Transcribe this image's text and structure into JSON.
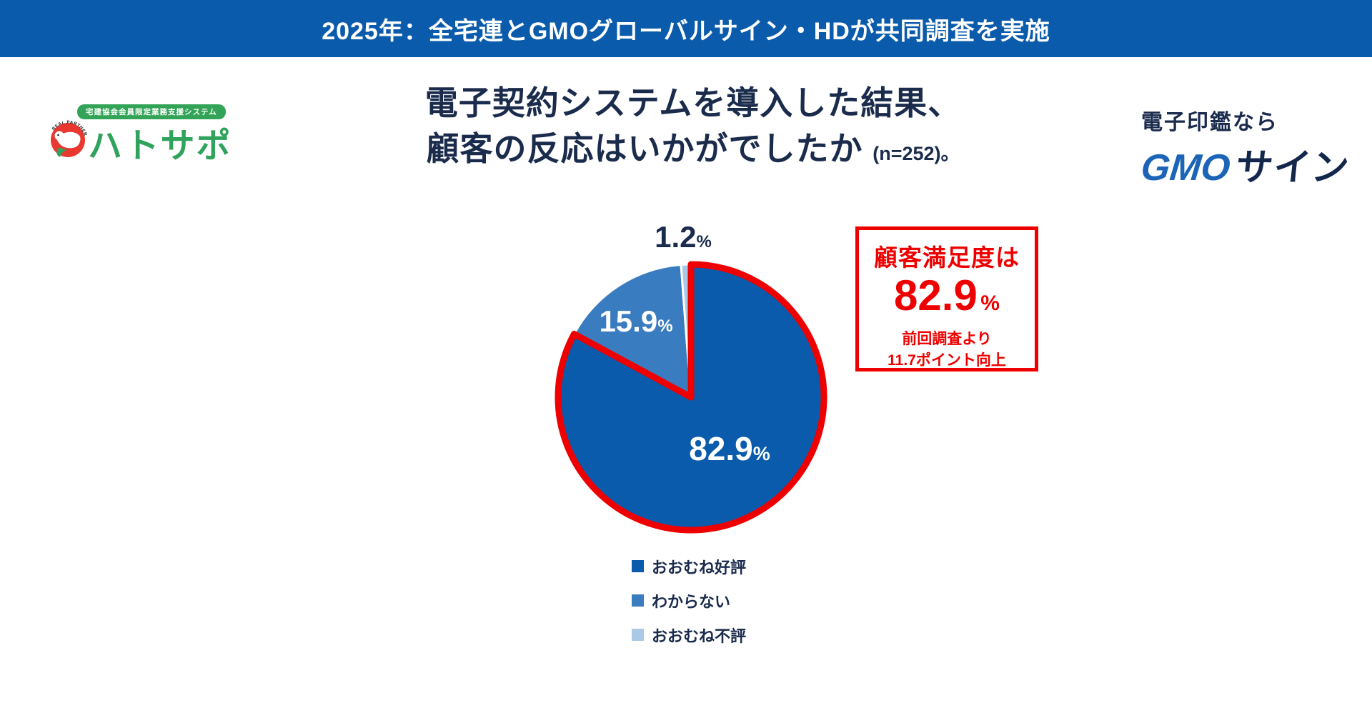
{
  "banner": {
    "text": "2025年：全宅連とGMOグローバルサイン・HDが共同調査を実施",
    "bg_color": "#0a5bab"
  },
  "hatosapo_logo": {
    "tagline": "宅建協会会員限定業務支援システム",
    "emblem_arc_text": "REAL PARTNER",
    "name": "ハトサポ",
    "green": "#2fa35c",
    "emblem_red": "#e8382f"
  },
  "gmosign_logo": {
    "lead": "電子印鑑なら",
    "brand_blue_part": "GMO",
    "brand_navy_part": "サイン",
    "blue": "#1c64b8",
    "navy": "#13264b"
  },
  "title": {
    "line1": "電子契約システムを導入した結果、",
    "line2": "顧客の反応はいかがでしたか",
    "sample_note": "(n=252)。"
  },
  "highlight_box": {
    "heading": "顧客満足度は",
    "value": "82.9",
    "unit": "%",
    "note1": "前回調査より",
    "note2": "11.7ポイント向上",
    "color": "#ee0000"
  },
  "chart_data": {
    "type": "pie",
    "title": "電子契約システムを導入した結果、顧客の反応はいかがでしたか（n=252）",
    "categories": [
      "おおむね好評",
      "わからない",
      "おおむね不評"
    ],
    "values": [
      82.9,
      15.9,
      1.2
    ],
    "colors": [
      "#0a5bab",
      "#3a7cc0",
      "#a9c9e7"
    ],
    "start_angle_deg": 0,
    "direction": "clockwise",
    "highlighted_slice": "おおむね好評",
    "highlight_outline_color": "#ee0000",
    "slice_labels": [
      {
        "value": "82.9",
        "unit": "%"
      },
      {
        "value": "15.9",
        "unit": "%"
      },
      {
        "value": "1.2",
        "unit": "%"
      }
    ],
    "legend_position": "bottom-left-of-chart"
  }
}
